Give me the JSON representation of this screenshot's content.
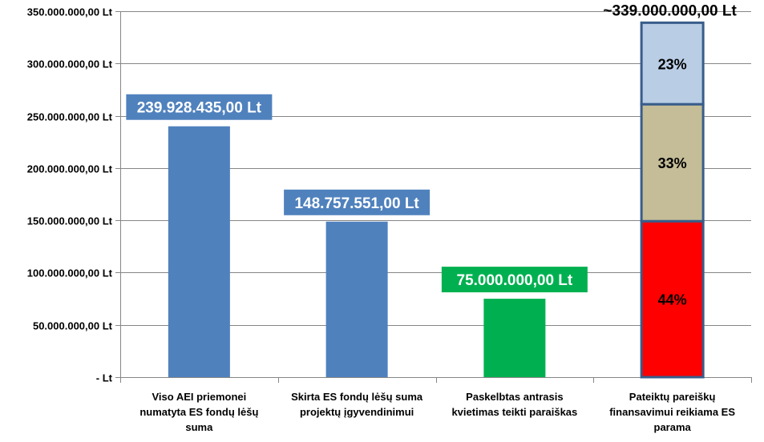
{
  "chart_data": {
    "type": "bar",
    "yticks": [
      {
        "value": 0,
        "label": "-  Lt"
      },
      {
        "value": 50000000,
        "label": "50.000.000,00 Lt"
      },
      {
        "value": 100000000,
        "label": "100.000.000,00 Lt"
      },
      {
        "value": 150000000,
        "label": "150.000.000,00 Lt"
      },
      {
        "value": 200000000,
        "label": "200.000.000,00 Lt"
      },
      {
        "value": 250000000,
        "label": "250.000.000,00 Lt"
      },
      {
        "value": 300000000,
        "label": "300.000.000,00 Lt"
      },
      {
        "value": 350000000,
        "label": "350.000.000,00 Lt"
      }
    ],
    "ylim": [
      0,
      350000000
    ],
    "grid": true,
    "bars": [
      {
        "category_lines": [
          "Viso AEI priemonei",
          "numatyta ES fondų lėšų",
          "suma"
        ],
        "value": 239928435,
        "color": "#4f81bd",
        "data_label": "239.928.435,00 Lt",
        "label_bg": "#4f81bd"
      },
      {
        "category_lines": [
          "Skirta  ES fondų lėšų suma",
          "projektų įgyvendinimui"
        ],
        "value": 148757551,
        "color": "#4f81bd",
        "data_label": "148.757.551,00 Lt",
        "label_bg": "#4f81bd"
      },
      {
        "category_lines": [
          "Paskelbtas antrasis",
          "kvietimas teikti paraiškas"
        ],
        "value": 75000000,
        "color": "#00b050",
        "data_label": "75.000.000,00  Lt",
        "label_bg": "#00b050"
      }
    ],
    "stacked_bar": {
      "category_lines": [
        "Pateiktų pareiškų",
        "finansavimui  reikiama ES",
        "parama"
      ],
      "total": 339000000,
      "total_label": "~339.000.000,00 Lt",
      "border_color": "#385d8a",
      "segments": [
        {
          "percent_label": "44%",
          "value": 149160000,
          "color": "#ff0000"
        },
        {
          "percent_label": "33%",
          "value": 111870000,
          "color": "#c4bd97"
        },
        {
          "percent_label": "23%",
          "value": 77970000,
          "color": "#b9cde5"
        }
      ]
    },
    "colors": {
      "grid": "#868686",
      "axis": "#868686"
    }
  }
}
